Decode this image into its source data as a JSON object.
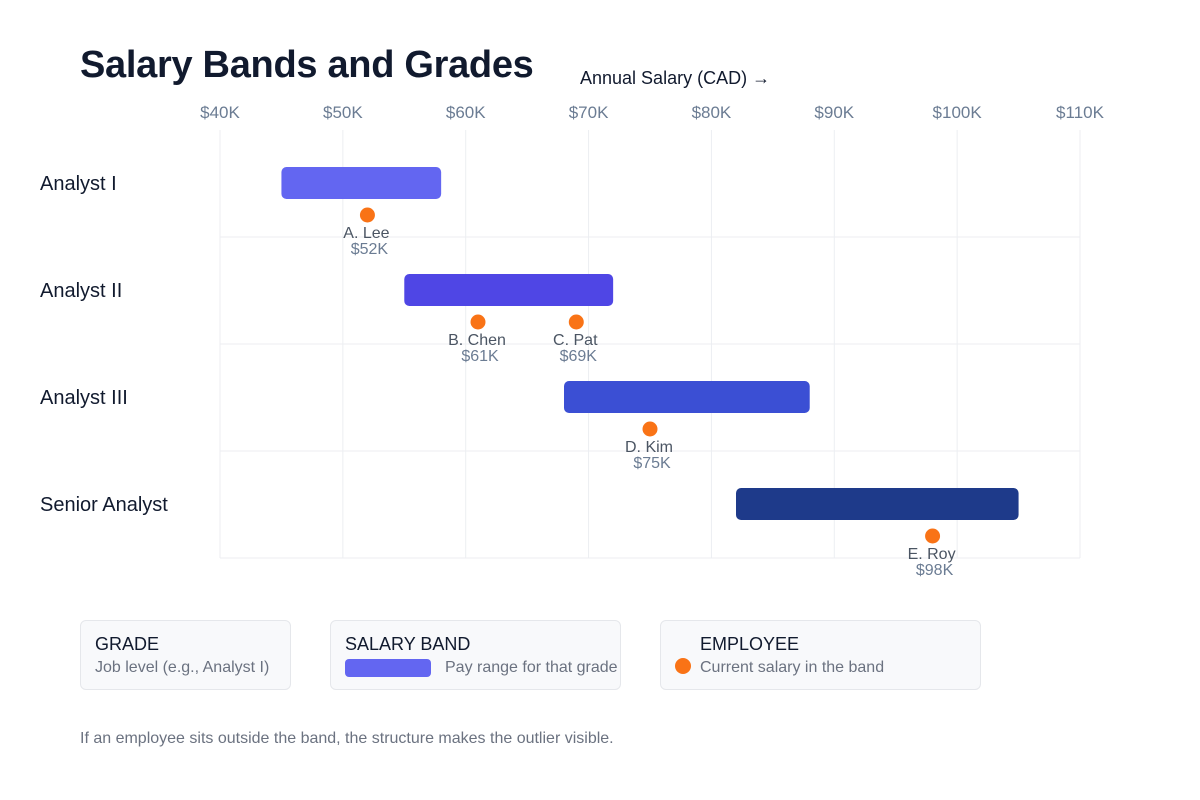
{
  "title": "Salary Bands and Grades",
  "axis_title": "Annual Salary (CAD) →",
  "colors": {
    "grid": "#eceef2",
    "tick_text": "#6b7c93",
    "label_text": "#111a2e",
    "employee_dot": "#f97316",
    "employee_label": "#4b5563",
    "employee_value": "#6b7c93"
  },
  "chart_data": {
    "type": "range-bar",
    "xlim": [
      40,
      110
    ],
    "x_unit": "K CAD",
    "ticks": [
      {
        "value": 40,
        "label": "$40K"
      },
      {
        "value": 50,
        "label": "$50K"
      },
      {
        "value": 60,
        "label": "$60K"
      },
      {
        "value": 70,
        "label": "$70K"
      },
      {
        "value": 80,
        "label": "$80K"
      },
      {
        "value": 90,
        "label": "$90K"
      },
      {
        "value": 100,
        "label": "$100K"
      },
      {
        "value": 110,
        "label": "$110K"
      }
    ],
    "grades": [
      {
        "name": "Analyst I",
        "band_min": 45,
        "band_max": 58,
        "color": "#6366f1",
        "employees": [
          {
            "name": "A. Lee",
            "salary": 52,
            "label": "$52K"
          }
        ]
      },
      {
        "name": "Analyst II",
        "band_min": 55,
        "band_max": 72,
        "color": "#4f46e5",
        "employees": [
          {
            "name": "B. Chen",
            "salary": 61,
            "label": "$61K"
          },
          {
            "name": "C. Pat",
            "salary": 69,
            "label": "$69K"
          }
        ]
      },
      {
        "name": "Analyst III",
        "band_min": 68,
        "band_max": 88,
        "color": "#3b4fd4",
        "employees": [
          {
            "name": "D. Kim",
            "salary": 75,
            "label": "$75K"
          }
        ]
      },
      {
        "name": "Senior Analyst",
        "band_min": 82,
        "band_max": 105,
        "color": "#1e3a8a",
        "employees": [
          {
            "name": "E. Roy",
            "salary": 98,
            "label": "$98K"
          }
        ]
      }
    ]
  },
  "legend": {
    "grade": {
      "title": "GRADE",
      "desc": "Job level (e.g., Analyst I)"
    },
    "band": {
      "title": "SALARY BAND",
      "desc": "Pay range for that grade",
      "swatch_color": "#6366f1"
    },
    "employee": {
      "title": "EMPLOYEE",
      "desc": "Current salary in the band",
      "dot_color": "#f97316"
    }
  },
  "footnote": "If an employee sits outside the band, the structure makes the outlier visible."
}
